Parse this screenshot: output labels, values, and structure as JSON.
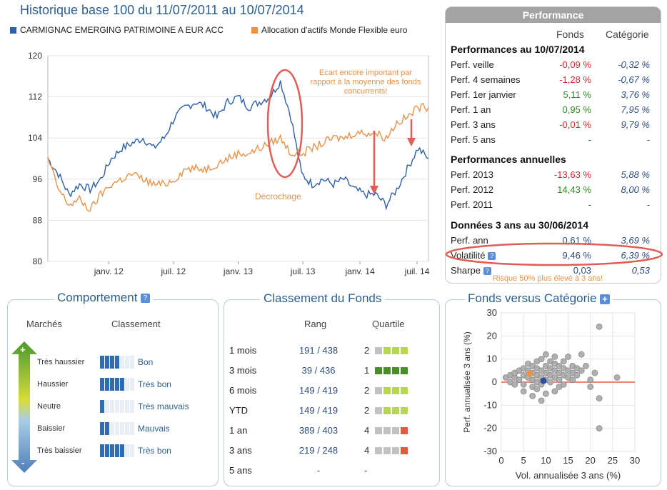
{
  "header": {
    "title": "Historique base 100 du 11/07/2011 au 10/07/2014",
    "legend": [
      {
        "label": "CARMIGNAC EMERGING PATRIMOINE A EUR ACC",
        "color": "#2e5fa8"
      },
      {
        "label": "Allocation d'actifs Monde Flexible euro",
        "color": "#e8924a"
      }
    ]
  },
  "chart_data": [
    {
      "type": "line",
      "title": "Historique base 100 du 11/07/2011 au 10/07/2014",
      "ylim": [
        80,
        120
      ],
      "yticks": [
        "80",
        "88",
        "96",
        "104",
        "112",
        "120"
      ],
      "xticks": [
        "janv. 12",
        "juil. 12",
        "janv. 13",
        "juil. 13",
        "janv. 14",
        "juil. 14"
      ],
      "series": [
        {
          "name": "CARMIGNAC EMERGING PATRIMOINE A EUR ACC",
          "color": "#2e5fa8",
          "x": [
            "2011-07",
            "2011-08",
            "2011-09",
            "2011-10",
            "2011-11",
            "2011-12",
            "2012-01",
            "2012-02",
            "2012-03",
            "2012-04",
            "2012-05",
            "2012-06",
            "2012-07",
            "2012-08",
            "2012-09",
            "2012-10",
            "2012-11",
            "2012-12",
            "2013-01",
            "2013-02",
            "2013-03",
            "2013-04",
            "2013-05",
            "2013-06",
            "2013-07",
            "2013-08",
            "2013-09",
            "2013-10",
            "2013-11",
            "2013-12",
            "2014-01",
            "2014-02",
            "2014-03",
            "2014-04",
            "2014-05",
            "2014-06",
            "2014-07"
          ],
          "values": [
            100,
            97,
            93,
            95,
            94,
            96,
            100,
            102,
            103,
            104,
            102,
            104,
            108,
            110,
            111,
            110,
            108,
            111,
            112,
            110,
            111,
            112,
            115,
            108,
            97,
            95,
            96,
            95,
            96,
            94,
            93,
            93,
            91,
            94,
            98,
            102,
            100
          ]
        },
        {
          "name": "Allocation d'actifs Monde Flexible euro",
          "color": "#e8924a",
          "x": [
            "2011-07",
            "2011-08",
            "2011-09",
            "2011-10",
            "2011-11",
            "2011-12",
            "2012-01",
            "2012-02",
            "2012-03",
            "2012-04",
            "2012-05",
            "2012-06",
            "2012-07",
            "2012-08",
            "2012-09",
            "2012-10",
            "2012-11",
            "2012-12",
            "2013-01",
            "2013-02",
            "2013-03",
            "2013-04",
            "2013-05",
            "2013-06",
            "2013-07",
            "2013-08",
            "2013-09",
            "2013-10",
            "2013-11",
            "2013-12",
            "2014-01",
            "2014-02",
            "2014-03",
            "2014-04",
            "2014-05",
            "2014-06",
            "2014-07"
          ],
          "values": [
            100,
            94,
            91,
            92,
            90,
            93,
            95,
            96,
            97,
            96,
            95,
            95,
            96,
            98,
            98,
            98,
            99,
            100,
            101,
            101,
            102,
            103,
            104,
            101,
            101,
            102,
            103,
            104,
            104,
            105,
            105,
            105,
            104,
            107,
            108,
            110,
            110
          ]
        }
      ],
      "annotations": [
        "Ecart encore important par rapport à la moyenne des fonds concurrents!",
        "Décrochage"
      ]
    },
    {
      "type": "scatter",
      "title": "Fonds versus Catégorie",
      "xlabel": "Vol. annualisée 3 ans (%)",
      "ylabel": "Perf. annualisée 3 ans (%)",
      "xlim": [
        0,
        30
      ],
      "ylim": [
        -30,
        30
      ],
      "xticks": [
        "0",
        "5",
        "10",
        "15",
        "20",
        "25",
        "30"
      ],
      "yticks": [
        "-30",
        "-20",
        "-10",
        "0",
        "10",
        "20",
        "30"
      ],
      "series": [
        {
          "name": "Catégorie",
          "color": "#b0b0b0",
          "points": [
            [
              1,
              2
            ],
            [
              2,
              3
            ],
            [
              3,
              2
            ],
            [
              3,
              4
            ],
            [
              4,
              5
            ],
            [
              4,
              1
            ],
            [
              5,
              6
            ],
            [
              5,
              3
            ],
            [
              5,
              -1
            ],
            [
              6,
              2
            ],
            [
              6,
              5
            ],
            [
              6,
              8
            ],
            [
              7,
              4
            ],
            [
              7,
              1
            ],
            [
              7,
              -2
            ],
            [
              7,
              7
            ],
            [
              8,
              3
            ],
            [
              8,
              6
            ],
            [
              8,
              9
            ],
            [
              8,
              0
            ],
            [
              8,
              -3
            ],
            [
              9,
              5
            ],
            [
              9,
              2
            ],
            [
              9,
              10
            ],
            [
              9,
              -1
            ],
            [
              10,
              4
            ],
            [
              10,
              7
            ],
            [
              10,
              1
            ],
            [
              10,
              -5
            ],
            [
              11,
              6
            ],
            [
              11,
              3
            ],
            [
              11,
              9
            ],
            [
              11,
              0
            ],
            [
              12,
              5
            ],
            [
              12,
              2
            ],
            [
              12,
              8
            ],
            [
              12,
              11
            ],
            [
              13,
              4
            ],
            [
              13,
              1
            ],
            [
              13,
              7
            ],
            [
              13,
              -2
            ],
            [
              14,
              6
            ],
            [
              14,
              3
            ],
            [
              14,
              9
            ],
            [
              15,
              5
            ],
            [
              15,
              2
            ],
            [
              15,
              11
            ],
            [
              16,
              4
            ],
            [
              16,
              7
            ],
            [
              17,
              3
            ],
            [
              17,
              6
            ],
            [
              18,
              12
            ],
            [
              18,
              5
            ],
            [
              19,
              7
            ],
            [
              20,
              1
            ],
            [
              20,
              -2
            ],
            [
              21,
              4
            ],
            [
              22,
              -7
            ],
            [
              22,
              24
            ],
            [
              22,
              -20
            ],
            [
              26,
              2
            ],
            [
              9,
              -8
            ],
            [
              7,
              -6
            ],
            [
              12,
              -4
            ],
            [
              5,
              -4
            ],
            [
              2,
              0
            ],
            [
              3,
              -1
            ],
            [
              14,
              -1
            ],
            [
              16,
              1
            ],
            [
              10,
              12
            ]
          ]
        },
        {
          "name": "Catégorie moyenne",
          "color": "#e8924a",
          "points": [
            [
              6.39,
              3.69
            ]
          ]
        },
        {
          "name": "Fonds",
          "color": "#2e4f9a",
          "points": [
            [
              9.46,
              0.61
            ]
          ]
        }
      ],
      "reference_line_y": 0
    }
  ],
  "performance": {
    "header": "Performance",
    "col_fonds": "Fonds",
    "col_categorie": "Catégorie",
    "section1": "Performances au 10/07/2014",
    "rows1": [
      {
        "label": "Perf. veille",
        "fonds": "-0,09 %",
        "cat": "-0,32 %",
        "fcolor": "red"
      },
      {
        "label": "Perf. 4 semaines",
        "fonds": "-1,28 %",
        "cat": "-0,67 %",
        "fcolor": "red"
      },
      {
        "label": "Perf. 1er janvier",
        "fonds": "5,11 %",
        "cat": "3,76 %",
        "fcolor": "green"
      },
      {
        "label": "Perf. 1 an",
        "fonds": "0,95 %",
        "cat": "7,95 %",
        "fcolor": "green"
      },
      {
        "label": "Perf. 3 ans",
        "fonds": "-0,01 %",
        "cat": "9,79 %",
        "fcolor": "red"
      },
      {
        "label": "Perf. 5 ans",
        "fonds": "-",
        "cat": "-",
        "fcolor": "blue"
      }
    ],
    "section2": "Performances annuelles",
    "rows2": [
      {
        "label": "Perf. 2013",
        "fonds": "-13,63 %",
        "cat": "5,88 %",
        "fcolor": "red"
      },
      {
        "label": "Perf. 2012",
        "fonds": "14,43 %",
        "cat": "8,00 %",
        "fcolor": "green"
      },
      {
        "label": "Perf. 2011",
        "fonds": "-",
        "cat": "-",
        "fcolor": "blue"
      }
    ],
    "section3": "Données 3 ans au 30/06/2014",
    "rows3": [
      {
        "label": "Perf. ann",
        "fonds": "0,61 %",
        "cat": "3,69 %",
        "fcolor": "blue"
      },
      {
        "label": "Volatilité",
        "fonds": "9,46 %",
        "cat": "6,39 %",
        "fcolor": "blue",
        "help": true
      },
      {
        "label": "Sharpe",
        "fonds": "0,03",
        "cat": "0,53",
        "fcolor": "blue",
        "help": true
      }
    ],
    "note": "Risque 50% plus élevé à 3 ans!"
  },
  "comportement": {
    "title": "Comportement",
    "col_marches": "Marchés",
    "col_classement": "Classement",
    "rows": [
      {
        "label": "Très haussier",
        "rating": "Bon",
        "level": 4
      },
      {
        "label": "Haussier",
        "rating": "Très bon",
        "level": 5
      },
      {
        "label": "Neutre",
        "rating": "Très mauvais",
        "level": 1
      },
      {
        "label": "Baissier",
        "rating": "Mauvais",
        "level": 2
      },
      {
        "label": "Très baissier",
        "rating": "Très bon",
        "level": 5
      }
    ],
    "plus": "+",
    "minus": "-"
  },
  "classement": {
    "title": "Classement du Fonds",
    "col_rang": "Rang",
    "col_quartile": "Quartile",
    "rows": [
      {
        "period": "1 mois",
        "rang": "191 / 438",
        "quartile": "2",
        "q": 2
      },
      {
        "period": "3 mois",
        "rang": "39 / 436",
        "quartile": "1",
        "q": 1
      },
      {
        "period": "6 mois",
        "rang": "149 / 419",
        "quartile": "2",
        "q": 2
      },
      {
        "period": "YTD",
        "rang": "149 / 419",
        "quartile": "2",
        "q": 2
      },
      {
        "period": "1 an",
        "rang": "389 / 403",
        "quartile": "4",
        "q": 4
      },
      {
        "period": "3 ans",
        "rang": "219 / 248",
        "quartile": "4",
        "q": 4
      },
      {
        "period": "5 ans",
        "rang": "-",
        "quartile": "-",
        "q": 0
      }
    ]
  },
  "versus": {
    "title": "Fonds versus Catégorie",
    "plus": "+"
  }
}
